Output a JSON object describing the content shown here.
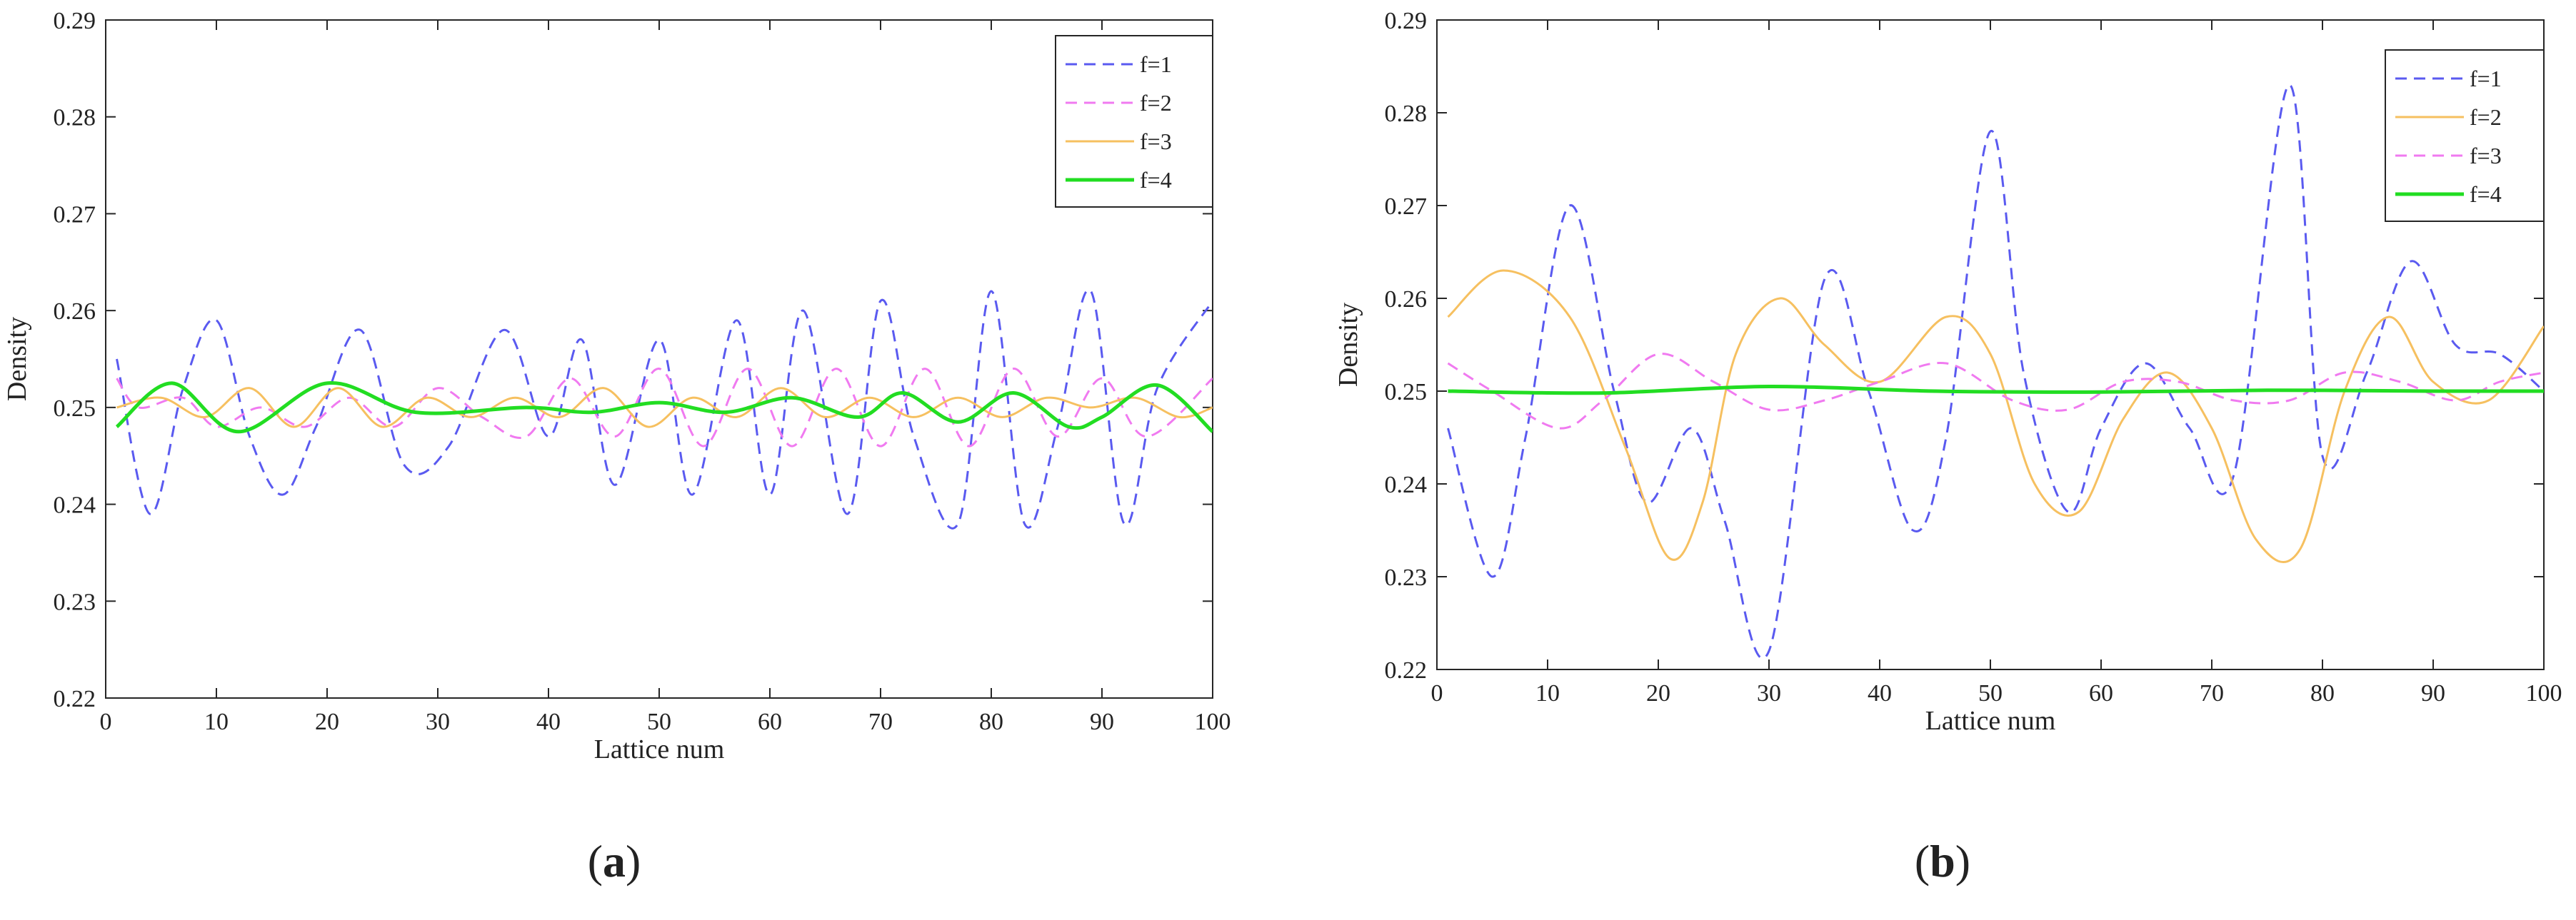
{
  "chart_data": [
    {
      "type": "line",
      "panel_label_prefix": "(",
      "panel_label": "a",
      "panel_label_suffix": ")",
      "xlabel": "Lattice num",
      "ylabel": "Density",
      "xlim": [
        0,
        100
      ],
      "ylim": [
        0.22,
        0.29
      ],
      "xticks": [
        0,
        10,
        20,
        30,
        40,
        50,
        60,
        70,
        80,
        90,
        100
      ],
      "yticks": [
        0.22,
        0.23,
        0.24,
        0.25,
        0.26,
        0.27,
        0.28,
        0.29
      ],
      "grid": false,
      "legend_position": "top-right",
      "series": [
        {
          "name": "f=1",
          "color": "#5a5af0",
          "dash": true,
          "width": 3,
          "x": [
            1,
            4,
            7,
            10,
            13,
            16,
            19,
            23,
            27,
            31,
            36,
            40,
            43,
            46,
            50,
            53,
            57,
            60,
            63,
            67,
            70,
            73,
            77,
            80,
            83,
            86,
            89,
            92,
            95,
            100
          ],
          "y": [
            0.255,
            0.239,
            0.252,
            0.259,
            0.247,
            0.241,
            0.248,
            0.258,
            0.244,
            0.246,
            0.258,
            0.247,
            0.257,
            0.242,
            0.257,
            0.241,
            0.259,
            0.241,
            0.26,
            0.239,
            0.261,
            0.247,
            0.238,
            0.262,
            0.238,
            0.248,
            0.262,
            0.238,
            0.252,
            0.261
          ]
        },
        {
          "name": "f=2",
          "color": "#f07af0",
          "dash": true,
          "width": 3,
          "x": [
            1,
            3,
            7,
            10,
            14,
            18,
            22,
            26,
            30,
            34,
            38,
            42,
            46,
            50,
            54,
            58,
            62,
            66,
            70,
            74,
            78,
            82,
            86,
            90,
            94,
            100
          ],
          "y": [
            0.253,
            0.25,
            0.251,
            0.248,
            0.25,
            0.248,
            0.251,
            0.248,
            0.252,
            0.249,
            0.247,
            0.253,
            0.247,
            0.254,
            0.246,
            0.254,
            0.246,
            0.254,
            0.246,
            0.254,
            0.246,
            0.254,
            0.247,
            0.253,
            0.247,
            0.253
          ]
        },
        {
          "name": "f=3",
          "color": "#f6c060",
          "dash": false,
          "width": 3,
          "x": [
            1,
            5,
            9,
            13,
            17,
            21,
            25,
            29,
            33,
            37,
            41,
            45,
            49,
            53,
            57,
            61,
            65,
            69,
            73,
            77,
            81,
            85,
            89,
            93,
            97,
            100
          ],
          "y": [
            0.25,
            0.251,
            0.249,
            0.252,
            0.248,
            0.252,
            0.248,
            0.251,
            0.249,
            0.251,
            0.249,
            0.252,
            0.248,
            0.251,
            0.249,
            0.252,
            0.249,
            0.251,
            0.249,
            0.251,
            0.249,
            0.251,
            0.25,
            0.251,
            0.249,
            0.25
          ]
        },
        {
          "name": "f=4",
          "color": "#22dd22",
          "dash": false,
          "width": 5,
          "x": [
            1,
            6,
            12,
            20,
            28,
            38,
            44,
            50,
            56,
            62,
            68,
            72,
            77,
            82,
            87,
            90,
            95,
            100
          ],
          "y": [
            0.248,
            0.2525,
            0.2475,
            0.2525,
            0.2495,
            0.25,
            0.2495,
            0.2505,
            0.2495,
            0.251,
            0.249,
            0.2515,
            0.2485,
            0.2515,
            0.248,
            0.249,
            0.2523,
            0.2475
          ]
        }
      ]
    },
    {
      "type": "line",
      "panel_label_prefix": "(",
      "panel_label": "b",
      "panel_label_suffix": ")",
      "xlabel": "Lattice num",
      "ylabel": "Density",
      "xlim": [
        0,
        100
      ],
      "ylim": [
        0.22,
        0.29
      ],
      "xticks": [
        0,
        10,
        20,
        30,
        40,
        50,
        60,
        70,
        80,
        90,
        100
      ],
      "yticks": [
        0.22,
        0.23,
        0.24,
        0.25,
        0.26,
        0.27,
        0.28,
        0.29
      ],
      "grid": false,
      "legend_position": "top-right",
      "series": [
        {
          "name": "f=1",
          "color": "#5a5af0",
          "dash": true,
          "width": 3,
          "x": [
            1,
            5,
            8,
            12,
            16,
            19,
            23,
            26,
            30,
            35,
            39,
            43,
            46,
            50,
            53,
            57,
            60,
            64,
            68,
            72,
            77,
            80,
            84,
            88,
            92,
            96,
            100
          ],
          "y": [
            0.246,
            0.23,
            0.245,
            0.27,
            0.25,
            0.238,
            0.246,
            0.236,
            0.222,
            0.262,
            0.25,
            0.235,
            0.245,
            0.278,
            0.252,
            0.237,
            0.246,
            0.253,
            0.246,
            0.241,
            0.283,
            0.243,
            0.252,
            0.264,
            0.255,
            0.254,
            0.25
          ]
        },
        {
          "name": "f=2",
          "color": "#f6c060",
          "dash": false,
          "width": 3,
          "x": [
            1,
            6,
            12,
            17,
            21,
            24,
            27,
            31,
            35,
            40,
            46,
            50,
            54,
            58,
            62,
            66,
            70,
            74,
            78,
            82,
            86,
            90,
            95,
            100
          ],
          "y": [
            0.258,
            0.263,
            0.258,
            0.244,
            0.232,
            0.238,
            0.254,
            0.26,
            0.255,
            0.251,
            0.258,
            0.254,
            0.24,
            0.237,
            0.247,
            0.252,
            0.246,
            0.234,
            0.233,
            0.25,
            0.258,
            0.251,
            0.249,
            0.257
          ]
        },
        {
          "name": "f=3",
          "color": "#f07af0",
          "dash": true,
          "width": 3,
          "x": [
            1,
            5,
            11,
            15,
            20,
            25,
            30,
            35,
            40,
            46,
            52,
            57,
            62,
            67,
            72,
            77,
            82,
            87,
            92,
            96,
            100
          ],
          "y": [
            0.253,
            0.25,
            0.246,
            0.249,
            0.254,
            0.251,
            0.248,
            0.249,
            0.251,
            0.253,
            0.249,
            0.248,
            0.251,
            0.251,
            0.249,
            0.249,
            0.252,
            0.251,
            0.249,
            0.251,
            0.252
          ]
        },
        {
          "name": "f=4",
          "color": "#22dd22",
          "dash": false,
          "width": 5,
          "x": [
            1,
            15,
            30,
            45,
            60,
            75,
            90,
            100
          ],
          "y": [
            0.25,
            0.2498,
            0.2505,
            0.25,
            0.2499,
            0.2501,
            0.25,
            0.25
          ]
        }
      ]
    }
  ]
}
